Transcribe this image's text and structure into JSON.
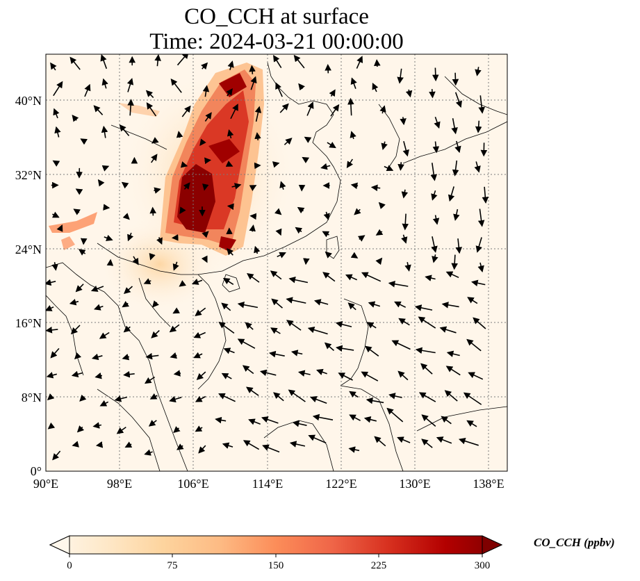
{
  "title": {
    "line1": "CO_CCH at surface",
    "line2": "Time: 2024-03-21 00:00:00"
  },
  "map": {
    "projection": "PlateCarree",
    "lon_range": [
      90,
      140
    ],
    "lat_range": [
      0,
      45
    ],
    "gridlines": "dotted",
    "variable": "CO_CCH",
    "overlay": "wind vectors (arrows)",
    "lon_ticks": [
      {
        "value": 90,
        "label": "90°E"
      },
      {
        "value": 98,
        "label": "98°E"
      },
      {
        "value": 106,
        "label": "106°E"
      },
      {
        "value": 114,
        "label": "114°E"
      },
      {
        "value": 122,
        "label": "122°E"
      },
      {
        "value": 130,
        "label": "130°E"
      },
      {
        "value": 138,
        "label": "138°E"
      }
    ],
    "lat_ticks": [
      {
        "value": 0,
        "label": "0°"
      },
      {
        "value": 8,
        "label": "8°N"
      },
      {
        "value": 16,
        "label": "16°N"
      },
      {
        "value": 24,
        "label": "24°N"
      },
      {
        "value": 32,
        "label": "32°N"
      },
      {
        "value": 40,
        "label": "40°N"
      }
    ]
  },
  "colorbar": {
    "label": "CO_CCH (ppbv)",
    "colormap": "OrRd",
    "range": [
      0,
      300
    ],
    "extend": "both",
    "ticks": [
      "0",
      "75",
      "150",
      "225",
      "300"
    ],
    "colors": [
      "#fff7ec",
      "#fee8c8",
      "#fdd49e",
      "#fdbb84",
      "#fc8d59",
      "#ef6548",
      "#d7301f",
      "#b30000",
      "#7f0000"
    ]
  }
}
